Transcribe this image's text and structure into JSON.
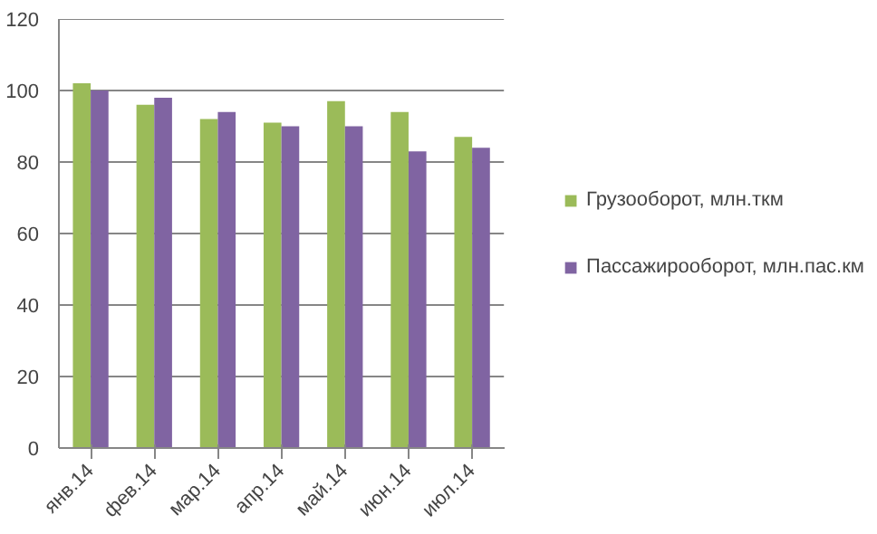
{
  "chart_data": {
    "type": "bar",
    "categories": [
      "янв.14",
      "фев.14",
      "мар.14",
      "апр.14",
      "май.14",
      "июн.14",
      "июл.14"
    ],
    "series": [
      {
        "name": "Грузооборот, млн.ткм",
        "color": "#9bbb59",
        "values": [
          102,
          96,
          92,
          91,
          97,
          94,
          87
        ]
      },
      {
        "name": "Пассажирооборот, млн.пас.км",
        "color": "#8064a2",
        "values": [
          100,
          98,
          94,
          90,
          90,
          83,
          84
        ]
      }
    ],
    "ylim": [
      0,
      120
    ],
    "yticks": [
      0,
      20,
      40,
      60,
      80,
      100,
      120
    ],
    "grid": "y",
    "legend": "right"
  }
}
